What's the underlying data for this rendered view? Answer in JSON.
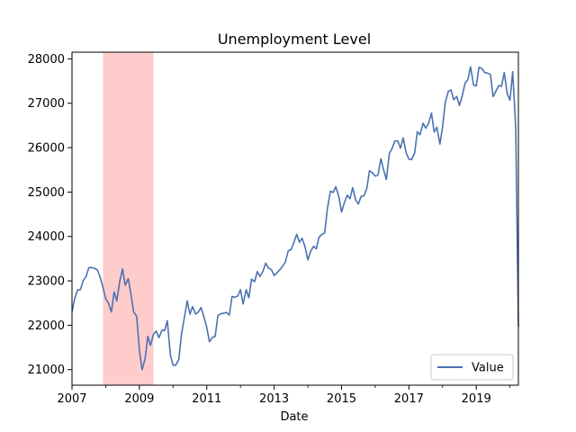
{
  "chart_data": {
    "type": "line",
    "title": "Unemployment Level",
    "xlabel": "Date",
    "ylabel": "",
    "xlim": [
      2007.0,
      2020.25
    ],
    "ylim": [
      20650,
      28150
    ],
    "x_ticks": [
      2007,
      2009,
      2011,
      2013,
      2015,
      2017,
      2019
    ],
    "y_ticks": [
      21000,
      22000,
      23000,
      24000,
      25000,
      26000,
      27000,
      28000
    ],
    "legend": {
      "position": "lower-right",
      "entries": [
        "Value"
      ]
    },
    "series": [
      {
        "name": "Value",
        "color": "#4c72b0",
        "points": [
          [
            2007.0,
            22300
          ],
          [
            2007.08,
            22600
          ],
          [
            2007.17,
            22800
          ],
          [
            2007.25,
            22800
          ],
          [
            2007.33,
            23000
          ],
          [
            2007.42,
            23100
          ],
          [
            2007.5,
            23300
          ],
          [
            2007.58,
            23300
          ],
          [
            2007.67,
            23280
          ],
          [
            2007.75,
            23250
          ],
          [
            2007.83,
            23100
          ],
          [
            2007.92,
            22850
          ],
          [
            2008.0,
            22600
          ],
          [
            2008.08,
            22500
          ],
          [
            2008.17,
            22300
          ],
          [
            2008.25,
            22750
          ],
          [
            2008.33,
            22550
          ],
          [
            2008.42,
            23000
          ],
          [
            2008.5,
            23270
          ],
          [
            2008.58,
            22900
          ],
          [
            2008.67,
            23050
          ],
          [
            2008.75,
            22700
          ],
          [
            2008.83,
            22300
          ],
          [
            2008.92,
            22200
          ],
          [
            2009.0,
            21450
          ],
          [
            2009.08,
            21000
          ],
          [
            2009.17,
            21250
          ],
          [
            2009.25,
            21750
          ],
          [
            2009.33,
            21550
          ],
          [
            2009.42,
            21800
          ],
          [
            2009.5,
            21870
          ],
          [
            2009.58,
            21720
          ],
          [
            2009.67,
            21890
          ],
          [
            2009.75,
            21880
          ],
          [
            2009.83,
            22100
          ],
          [
            2009.92,
            21330
          ],
          [
            2010.0,
            21100
          ],
          [
            2010.08,
            21100
          ],
          [
            2010.17,
            21230
          ],
          [
            2010.25,
            21800
          ],
          [
            2010.33,
            22150
          ],
          [
            2010.42,
            22550
          ],
          [
            2010.5,
            22250
          ],
          [
            2010.58,
            22420
          ],
          [
            2010.67,
            22250
          ],
          [
            2010.75,
            22300
          ],
          [
            2010.83,
            22400
          ],
          [
            2010.92,
            22180
          ],
          [
            2011.0,
            21950
          ],
          [
            2011.08,
            21630
          ],
          [
            2011.17,
            21730
          ],
          [
            2011.25,
            21750
          ],
          [
            2011.33,
            22220
          ],
          [
            2011.42,
            22260
          ],
          [
            2011.5,
            22270
          ],
          [
            2011.58,
            22290
          ],
          [
            2011.67,
            22230
          ],
          [
            2011.75,
            22650
          ],
          [
            2011.83,
            22630
          ],
          [
            2011.92,
            22660
          ],
          [
            2012.0,
            22800
          ],
          [
            2012.08,
            22480
          ],
          [
            2012.17,
            22800
          ],
          [
            2012.25,
            22620
          ],
          [
            2012.33,
            23040
          ],
          [
            2012.42,
            22980
          ],
          [
            2012.5,
            23210
          ],
          [
            2012.58,
            23100
          ],
          [
            2012.67,
            23220
          ],
          [
            2012.75,
            23400
          ],
          [
            2012.83,
            23290
          ],
          [
            2012.92,
            23250
          ],
          [
            2013.0,
            23120
          ],
          [
            2013.08,
            23180
          ],
          [
            2013.17,
            23250
          ],
          [
            2013.25,
            23330
          ],
          [
            2013.33,
            23420
          ],
          [
            2013.42,
            23680
          ],
          [
            2013.5,
            23700
          ],
          [
            2013.58,
            23850
          ],
          [
            2013.67,
            24050
          ],
          [
            2013.75,
            23870
          ],
          [
            2013.83,
            23960
          ],
          [
            2013.92,
            23760
          ],
          [
            2014.0,
            23470
          ],
          [
            2014.08,
            23660
          ],
          [
            2014.17,
            23780
          ],
          [
            2014.25,
            23720
          ],
          [
            2014.33,
            23980
          ],
          [
            2014.42,
            24050
          ],
          [
            2014.5,
            24080
          ],
          [
            2014.58,
            24620
          ],
          [
            2014.67,
            25020
          ],
          [
            2014.75,
            24990
          ],
          [
            2014.83,
            25120
          ],
          [
            2014.92,
            24900
          ],
          [
            2015.0,
            24550
          ],
          [
            2015.08,
            24750
          ],
          [
            2015.17,
            24930
          ],
          [
            2015.25,
            24850
          ],
          [
            2015.33,
            25100
          ],
          [
            2015.42,
            24820
          ],
          [
            2015.5,
            24730
          ],
          [
            2015.58,
            24900
          ],
          [
            2015.67,
            24920
          ],
          [
            2015.75,
            25080
          ],
          [
            2015.83,
            25480
          ],
          [
            2015.92,
            25430
          ],
          [
            2016.0,
            25360
          ],
          [
            2016.08,
            25380
          ],
          [
            2016.17,
            25750
          ],
          [
            2016.25,
            25500
          ],
          [
            2016.33,
            25280
          ],
          [
            2016.42,
            25870
          ],
          [
            2016.5,
            25980
          ],
          [
            2016.58,
            26150
          ],
          [
            2016.67,
            26150
          ],
          [
            2016.75,
            25990
          ],
          [
            2016.83,
            26220
          ],
          [
            2016.92,
            25880
          ],
          [
            2017.0,
            25740
          ],
          [
            2017.08,
            25730
          ],
          [
            2017.17,
            25880
          ],
          [
            2017.25,
            26360
          ],
          [
            2017.33,
            26290
          ],
          [
            2017.42,
            26550
          ],
          [
            2017.5,
            26440
          ],
          [
            2017.58,
            26540
          ],
          [
            2017.67,
            26780
          ],
          [
            2017.75,
            26350
          ],
          [
            2017.83,
            26460
          ],
          [
            2017.92,
            26080
          ],
          [
            2018.0,
            26470
          ],
          [
            2018.08,
            27020
          ],
          [
            2018.17,
            27270
          ],
          [
            2018.25,
            27300
          ],
          [
            2018.33,
            27080
          ],
          [
            2018.42,
            27150
          ],
          [
            2018.5,
            26950
          ],
          [
            2018.58,
            27160
          ],
          [
            2018.67,
            27460
          ],
          [
            2018.75,
            27530
          ],
          [
            2018.83,
            27820
          ],
          [
            2018.92,
            27410
          ],
          [
            2019.0,
            27390
          ],
          [
            2019.08,
            27810
          ],
          [
            2019.17,
            27780
          ],
          [
            2019.25,
            27690
          ],
          [
            2019.33,
            27680
          ],
          [
            2019.42,
            27650
          ],
          [
            2019.5,
            27150
          ],
          [
            2019.58,
            27270
          ],
          [
            2019.67,
            27400
          ],
          [
            2019.75,
            27380
          ],
          [
            2019.83,
            27690
          ],
          [
            2019.92,
            27210
          ],
          [
            2020.0,
            27070
          ],
          [
            2020.08,
            27710
          ],
          [
            2020.17,
            26470
          ],
          [
            2020.25,
            21970
          ]
        ]
      }
    ],
    "shaded_regions": [
      {
        "start": 2007.92,
        "end": 2009.42,
        "color": "#ff9999",
        "opacity": 0.5
      }
    ]
  }
}
